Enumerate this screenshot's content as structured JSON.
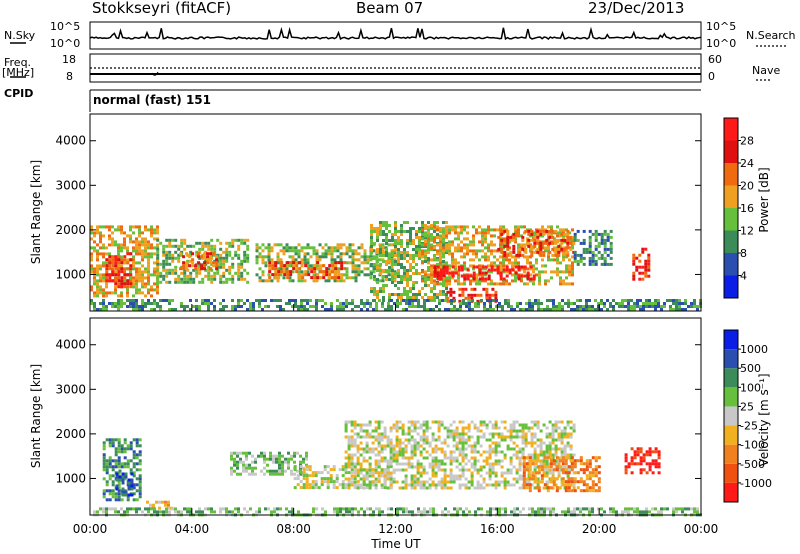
{
  "header": {
    "station": "Stokkseyri (fitACF)",
    "beam": "Beam 07",
    "date": "23/Dec/2013"
  },
  "strip": {
    "nsky_label": "N.Sky",
    "nsky_hi": "10^5",
    "nsky_lo": "10^0",
    "nsearch_hi": "10^5",
    "nsearch_lo": "10^0",
    "nsearch_label": "N.Search",
    "freq_label_1": "Freq.",
    "freq_label_2": "[MHz]",
    "freq_hi": "18",
    "freq_lo": "8",
    "nave_hi": "60",
    "nave_lo": "0",
    "nave_label": "Nave",
    "cpid_label": "CPID",
    "cpid_value": "normal (fast) 151"
  },
  "chart_data": [
    {
      "type": "heatmap",
      "name": "power",
      "ylabel": "Slant Range [km]",
      "ylim": [
        180,
        4600
      ],
      "yticks": [
        "1000",
        "2000",
        "3000",
        "4000"
      ],
      "xticks": [],
      "colorbar": {
        "label": "Power [dB]",
        "ticks": [
          "4",
          "8",
          "12",
          "16",
          "20",
          "24",
          "28"
        ],
        "colors": [
          "#0a1ee6",
          "#2b4fb0",
          "#3c8c5a",
          "#66c03c",
          "#f0a020",
          "#f06a10",
          "#e01010",
          "#ff1a1a"
        ]
      },
      "regions": [
        {
          "t0": 0.0,
          "t1": 2.6,
          "r0": 500,
          "r1": 2100,
          "level": 4
        },
        {
          "t0": 0.6,
          "t1": 1.6,
          "r0": 700,
          "r1": 1500,
          "level": 6
        },
        {
          "t0": 2.6,
          "t1": 6.2,
          "r0": 800,
          "r1": 1800,
          "level": 3
        },
        {
          "t0": 3.5,
          "t1": 5.0,
          "r0": 1100,
          "r1": 1500,
          "level": 5
        },
        {
          "t0": 6.5,
          "t1": 12.0,
          "r0": 850,
          "r1": 1700,
          "level": 3
        },
        {
          "t0": 7.0,
          "t1": 10.0,
          "r0": 950,
          "r1": 1300,
          "level": 5
        },
        {
          "t0": 11.0,
          "t1": 14.0,
          "r0": 400,
          "r1": 2200,
          "level": 3
        },
        {
          "t0": 13.0,
          "t1": 19.0,
          "r0": 800,
          "r1": 2100,
          "level": 4
        },
        {
          "t0": 13.5,
          "t1": 17.5,
          "r0": 900,
          "r1": 1200,
          "level": 7
        },
        {
          "t0": 14.0,
          "t1": 16.0,
          "r0": 400,
          "r1": 700,
          "level": 6
        },
        {
          "t0": 16.0,
          "t1": 19.0,
          "r0": 1400,
          "r1": 2000,
          "level": 5
        },
        {
          "t0": 19.0,
          "t1": 20.5,
          "r0": 1200,
          "r1": 2000,
          "level": 2
        },
        {
          "t0": 21.3,
          "t1": 22.0,
          "r0": 900,
          "r1": 1600,
          "level": 6
        },
        {
          "t0": 0.0,
          "t1": 24.0,
          "r0": 200,
          "r1": 450,
          "level": 2
        }
      ]
    },
    {
      "type": "heatmap",
      "name": "velocity",
      "ylabel": "Slant Range [km]",
      "ylim": [
        180,
        4600
      ],
      "yticks": [
        "1000",
        "2000",
        "3000",
        "4000"
      ],
      "xticks": [
        "00:00",
        "04:00",
        "08:00",
        "12:00",
        "16:00",
        "20:00",
        "00:00"
      ],
      "xlabel": "Time UT",
      "colorbar": {
        "label": "Velocity [m s⁻¹]",
        "ticks": [
          "-1000",
          "-500",
          "-100",
          "-25",
          "25",
          "100",
          "500",
          "1000"
        ],
        "colors": [
          "#ff1a1a",
          "#f05010",
          "#f08020",
          "#f0b020",
          "#c8c8c8",
          "#66c03c",
          "#3c8c5a",
          "#2b4fb0",
          "#0a1ee6"
        ]
      },
      "regions": [
        {
          "t0": 0.5,
          "t1": 2.0,
          "r0": 500,
          "r1": 1900,
          "level": 6
        },
        {
          "t0": 1.0,
          "t1": 1.6,
          "r0": 600,
          "r1": 1200,
          "level": 7
        },
        {
          "t0": 2.2,
          "t1": 3.2,
          "r0": 300,
          "r1": 500,
          "level": 3
        },
        {
          "t0": 5.5,
          "t1": 8.5,
          "r0": 1100,
          "r1": 1600,
          "level": 5
        },
        {
          "t0": 8.0,
          "t1": 12.0,
          "r0": 800,
          "r1": 1300,
          "level": 4
        },
        {
          "t0": 10.0,
          "t1": 19.0,
          "r0": 800,
          "r1": 2300,
          "level": 4
        },
        {
          "t0": 17.0,
          "t1": 20.0,
          "r0": 700,
          "r1": 1500,
          "level": 2
        },
        {
          "t0": 21.0,
          "t1": 22.3,
          "r0": 1100,
          "r1": 1700,
          "level": 0
        },
        {
          "t0": 0.0,
          "t1": 24.0,
          "r0": 200,
          "r1": 350,
          "level": 5
        }
      ]
    }
  ]
}
